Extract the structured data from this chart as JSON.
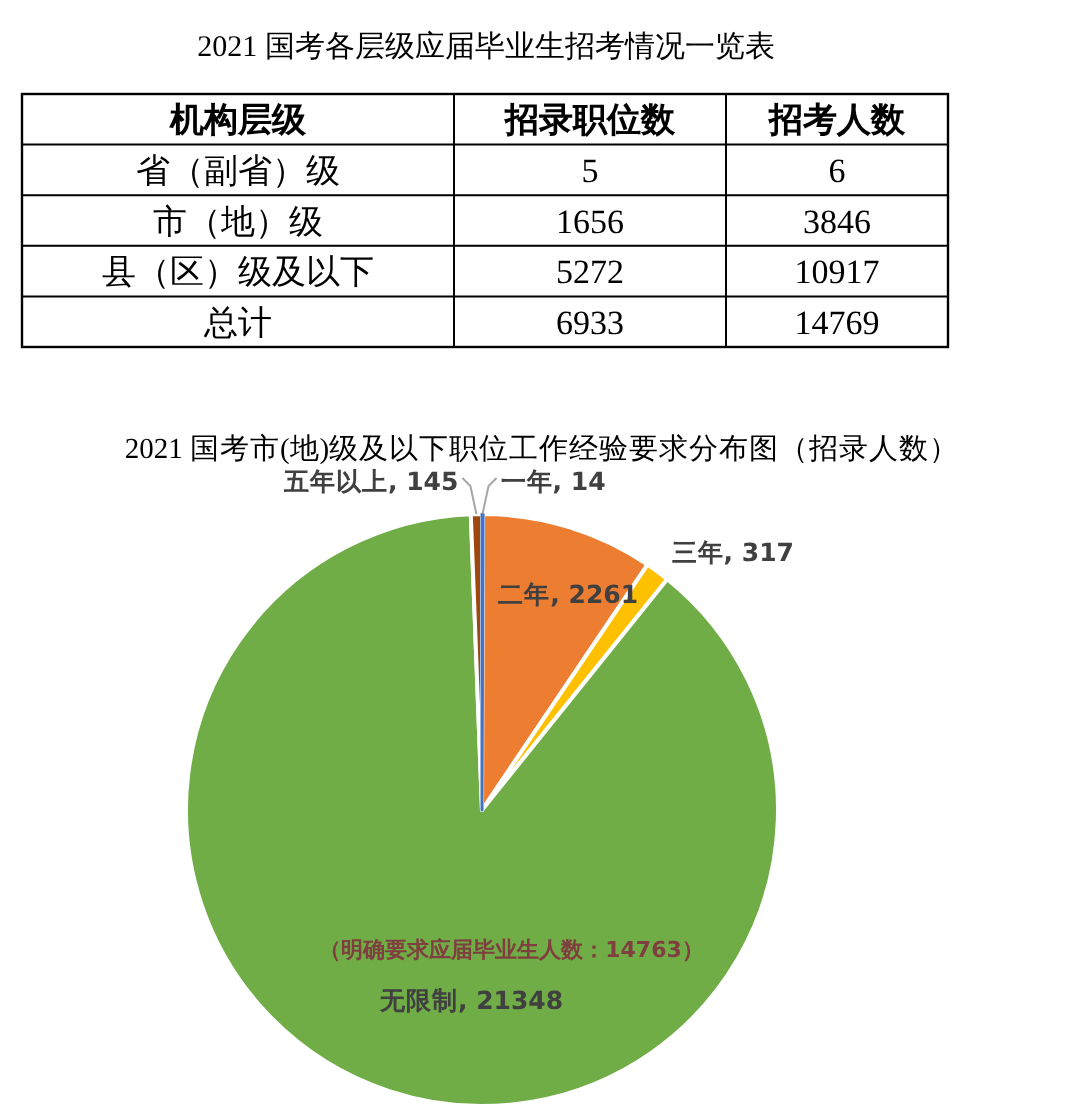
{
  "chart_data": [
    {
      "type": "other",
      "title": "2021 国考各层级应届毕业生招考情况一览表",
      "annotations": [
        "机构层级",
        "招录职位数",
        "招考人数",
        "省（副省）级",
        "5",
        "6",
        "市（地）级",
        "1656",
        "3846",
        "县（区）级及以下",
        "5272",
        "10917",
        "总计",
        "6933",
        "14769"
      ]
    },
    {
      "type": "pie",
      "title": "2021 国考市(地)级及以下职位工作经验要求分布图（招录人数）",
      "categories": [
        "一年",
        "二年",
        "三年",
        "无限制",
        "五年以上"
      ],
      "values": [
        14,
        2261,
        317,
        21348,
        145
      ],
      "colors": [
        "#4472c4",
        "#ed7d31",
        "#ffc000",
        "#70ad47",
        "#9e480e"
      ],
      "value_labels": [
        ", 14",
        ", 2261",
        ", 317",
        ", 21348",
        ", 145"
      ],
      "annotations": [
        "（明确要求应届毕业生人数：14763）"
      ]
    }
  ]
}
